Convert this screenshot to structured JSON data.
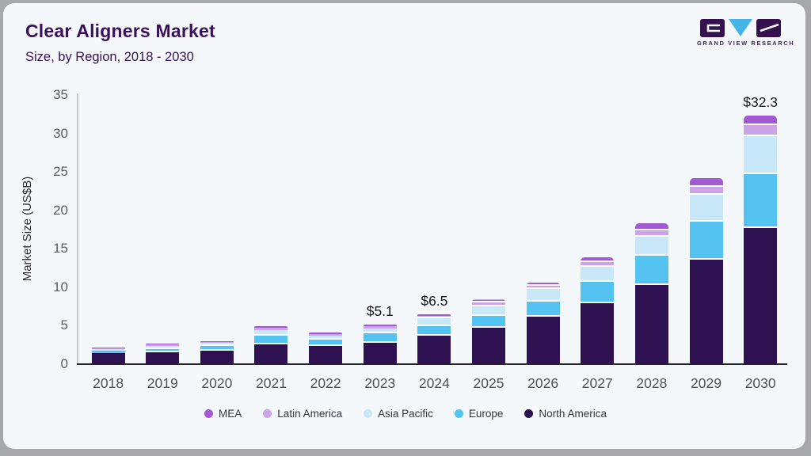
{
  "header": {
    "title": "Clear Aligners Market",
    "subtitle": "Size, by Region, 2018 - 2030"
  },
  "logo": {
    "brand": "GRAND VIEW RESEARCH",
    "block_color": "#33124f",
    "triangle_color": "#45b5e8"
  },
  "chart_data": {
    "type": "bar",
    "stacked": true,
    "title": "Clear Aligners Market",
    "subtitle": "Size, by Region, 2018 - 2030",
    "xlabel": "",
    "ylabel": "Market Size (US$B)",
    "ylim": [
      0,
      35
    ],
    "yticks": [
      0,
      5,
      10,
      15,
      20,
      25,
      30,
      35
    ],
    "grid": false,
    "legend_position": "bottom",
    "categories": [
      "2018",
      "2019",
      "2020",
      "2021",
      "2022",
      "2023",
      "2024",
      "2025",
      "2026",
      "2027",
      "2028",
      "2029",
      "2030"
    ],
    "series": [
      {
        "name": "North America",
        "color": "#2d1150",
        "values": [
          1.4,
          1.55,
          1.75,
          2.6,
          2.35,
          2.8,
          3.7,
          4.7,
          6.2,
          7.9,
          10.3,
          13.6,
          17.7
        ]
      },
      {
        "name": "Europe",
        "color": "#54c3f1",
        "values": [
          0.3,
          0.45,
          0.6,
          1.15,
          0.85,
          1.25,
          1.25,
          1.55,
          1.95,
          2.85,
          3.8,
          4.9,
          7.0
        ]
      },
      {
        "name": "Asia Pacific",
        "color": "#c8e7f8",
        "values": [
          0.3,
          0.4,
          0.4,
          0.7,
          0.5,
          0.6,
          1.0,
          1.3,
          1.65,
          1.9,
          2.45,
          3.5,
          4.9
        ]
      },
      {
        "name": "Latin America",
        "color": "#cba3e6",
        "values": [
          0.13,
          0.2,
          0.15,
          0.3,
          0.25,
          0.3,
          0.35,
          0.5,
          0.4,
          0.6,
          0.85,
          1.1,
          1.5
        ]
      },
      {
        "name": "MEA",
        "color": "#a259d4",
        "values": [
          0.07,
          0.1,
          0.1,
          0.15,
          0.15,
          0.15,
          0.2,
          0.35,
          0.4,
          0.65,
          0.9,
          1.1,
          1.2
        ]
      }
    ],
    "totals": [
      2.2,
      2.7,
      3.0,
      4.9,
      4.1,
      5.1,
      6.5,
      8.4,
      10.6,
      13.9,
      18.3,
      24.2,
      32.3
    ],
    "legend_order": [
      "MEA",
      "Latin America",
      "Asia Pacific",
      "Europe",
      "North America"
    ],
    "annotations": [
      {
        "category": "2023",
        "text": "$5.1"
      },
      {
        "category": "2024",
        "text": "$6.5"
      },
      {
        "category": "2030",
        "text": "$32.3"
      }
    ]
  }
}
